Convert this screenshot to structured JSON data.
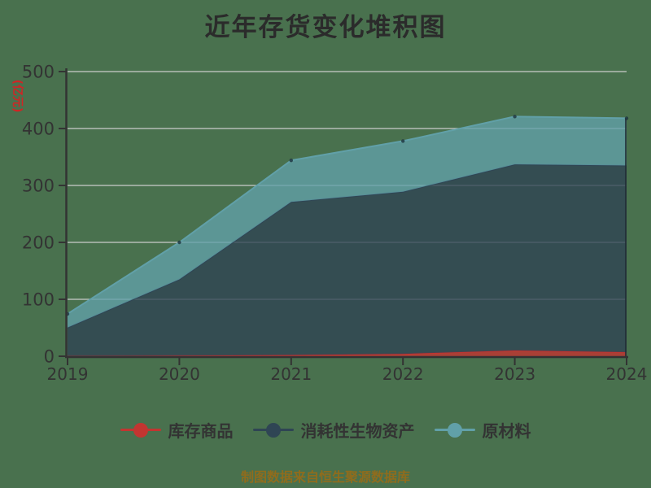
{
  "title": "近年存货变化堆积图",
  "y_axis_name": "(亿元)",
  "footer": "制图数据来自恒生聚源数据库",
  "colors": {
    "background": "#49714E",
    "gridline": "#cccccc",
    "axis": "#333333",
    "tick_label": "#333333",
    "title": "#2b2b2b",
    "y_axis_name": "#d02525",
    "footer": "#8f6c1d"
  },
  "chart_data": {
    "type": "area",
    "stacked": true,
    "title": "近年存货变化堆积图",
    "ylabel": "(亿元)",
    "x": [
      "2019",
      "2020",
      "2021",
      "2022",
      "2023",
      "2024"
    ],
    "series": [
      {
        "name": "库存商品",
        "color": "#c23531",
        "values": [
          0.4,
          1,
          2,
          4,
          10,
          7
        ]
      },
      {
        "name": "消耗性生物资产",
        "color": "#2f4554",
        "values": [
          50,
          134,
          269,
          285,
          327,
          328
        ]
      },
      {
        "name": "原材料",
        "color": "#61a0a8",
        "values": [
          24,
          65,
          73,
          89,
          84,
          83
        ]
      }
    ],
    "totals": [
      74.4,
      200,
      344,
      378,
      421,
      418
    ],
    "ylim": [
      0,
      500
    ],
    "y_ticks": [
      0,
      100,
      200,
      300,
      400,
      500
    ],
    "grid": true,
    "legend_position": "bottom"
  }
}
